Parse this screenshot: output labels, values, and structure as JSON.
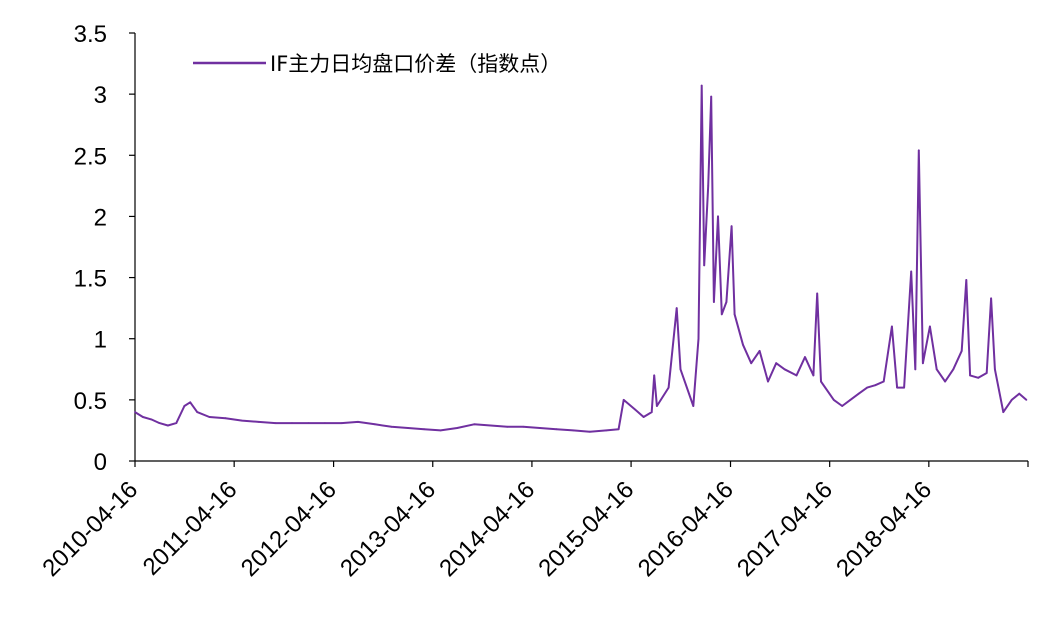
{
  "chart_data": {
    "type": "line",
    "title": "",
    "xlabel": "",
    "ylabel": "",
    "ylim": [
      0,
      3.5
    ],
    "yticks": [
      "0",
      "0.5",
      "1",
      "1.5",
      "2",
      "2.5",
      "3",
      "3.5"
    ],
    "xticks": [
      "2010-04-16",
      "2011-04-16",
      "2012-04-16",
      "2013-04-16",
      "2014-04-16",
      "2015-04-16",
      "2016-04-16",
      "2017-04-16",
      "2018-04-16"
    ],
    "xlim": [
      "2010-04-16",
      "2019-04-16"
    ],
    "legend_position": "top-left",
    "grid": false,
    "series": [
      {
        "name": "IF主力日均盘口价差（指数点）",
        "color": "#7030A0",
        "points": [
          [
            "2010-04-16",
            0.4
          ],
          [
            "2010-05-15",
            0.36
          ],
          [
            "2010-06-15",
            0.34
          ],
          [
            "2010-07-15",
            0.31
          ],
          [
            "2010-08-15",
            0.29
          ],
          [
            "2010-09-15",
            0.31
          ],
          [
            "2010-10-15",
            0.45
          ],
          [
            "2010-11-05",
            0.48
          ],
          [
            "2010-12-01",
            0.4
          ],
          [
            "2011-01-15",
            0.36
          ],
          [
            "2011-03-15",
            0.35
          ],
          [
            "2011-05-15",
            0.33
          ],
          [
            "2011-07-15",
            0.32
          ],
          [
            "2011-09-15",
            0.31
          ],
          [
            "2011-11-15",
            0.31
          ],
          [
            "2012-01-15",
            0.31
          ],
          [
            "2012-03-15",
            0.31
          ],
          [
            "2012-05-15",
            0.31
          ],
          [
            "2012-07-15",
            0.32
          ],
          [
            "2012-09-15",
            0.3
          ],
          [
            "2012-11-15",
            0.28
          ],
          [
            "2013-01-15",
            0.27
          ],
          [
            "2013-03-15",
            0.26
          ],
          [
            "2013-05-15",
            0.25
          ],
          [
            "2013-07-15",
            0.27
          ],
          [
            "2013-09-15",
            0.3
          ],
          [
            "2013-11-15",
            0.29
          ],
          [
            "2014-01-15",
            0.28
          ],
          [
            "2014-03-15",
            0.28
          ],
          [
            "2014-05-15",
            0.27
          ],
          [
            "2014-07-15",
            0.26
          ],
          [
            "2014-09-15",
            0.25
          ],
          [
            "2014-11-15",
            0.24
          ],
          [
            "2015-01-15",
            0.25
          ],
          [
            "2015-03-01",
            0.26
          ],
          [
            "2015-03-20",
            0.5
          ],
          [
            "2015-05-01",
            0.42
          ],
          [
            "2015-06-01",
            0.36
          ],
          [
            "2015-07-01",
            0.4
          ],
          [
            "2015-07-10",
            0.7
          ],
          [
            "2015-07-20",
            0.45
          ],
          [
            "2015-09-01",
            0.6
          ],
          [
            "2015-10-01",
            1.25
          ],
          [
            "2015-10-15",
            0.75
          ],
          [
            "2015-12-01",
            0.45
          ],
          [
            "2015-12-20",
            1.0
          ],
          [
            "2016-01-01",
            3.07
          ],
          [
            "2016-01-10",
            1.6
          ],
          [
            "2016-01-25",
            2.25
          ],
          [
            "2016-02-05",
            2.98
          ],
          [
            "2016-02-15",
            1.3
          ],
          [
            "2016-03-01",
            2.0
          ],
          [
            "2016-03-15",
            1.2
          ],
          [
            "2016-04-01",
            1.3
          ],
          [
            "2016-04-20",
            1.92
          ],
          [
            "2016-05-01",
            1.2
          ],
          [
            "2016-06-01",
            0.95
          ],
          [
            "2016-07-01",
            0.8
          ],
          [
            "2016-08-01",
            0.9
          ],
          [
            "2016-09-01",
            0.65
          ],
          [
            "2016-10-01",
            0.8
          ],
          [
            "2016-11-01",
            0.75
          ],
          [
            "2016-12-15",
            0.7
          ],
          [
            "2017-01-15",
            0.85
          ],
          [
            "2017-02-15",
            0.7
          ],
          [
            "2017-03-01",
            1.37
          ],
          [
            "2017-03-15",
            0.65
          ],
          [
            "2017-05-01",
            0.5
          ],
          [
            "2017-06-01",
            0.45
          ],
          [
            "2017-07-01",
            0.5
          ],
          [
            "2017-08-01",
            0.55
          ],
          [
            "2017-09-01",
            0.6
          ],
          [
            "2017-10-01",
            0.62
          ],
          [
            "2017-11-01",
            0.65
          ],
          [
            "2017-12-01",
            1.1
          ],
          [
            "2017-12-20",
            0.6
          ],
          [
            "2018-01-15",
            0.6
          ],
          [
            "2018-02-10",
            1.55
          ],
          [
            "2018-02-25",
            0.75
          ],
          [
            "2018-03-10",
            2.54
          ],
          [
            "2018-03-25",
            0.8
          ],
          [
            "2018-04-20",
            1.1
          ],
          [
            "2018-05-15",
            0.75
          ],
          [
            "2018-06-15",
            0.65
          ],
          [
            "2018-07-15",
            0.75
          ],
          [
            "2018-08-15",
            0.9
          ],
          [
            "2018-09-01",
            1.48
          ],
          [
            "2018-09-15",
            0.7
          ],
          [
            "2018-10-15",
            0.68
          ],
          [
            "2018-11-15",
            0.72
          ],
          [
            "2018-12-01",
            1.33
          ],
          [
            "2018-12-15",
            0.75
          ],
          [
            "2019-01-15",
            0.4
          ],
          [
            "2019-02-15",
            0.5
          ],
          [
            "2019-03-15",
            0.55
          ],
          [
            "2019-04-10",
            0.5
          ]
        ]
      }
    ]
  }
}
